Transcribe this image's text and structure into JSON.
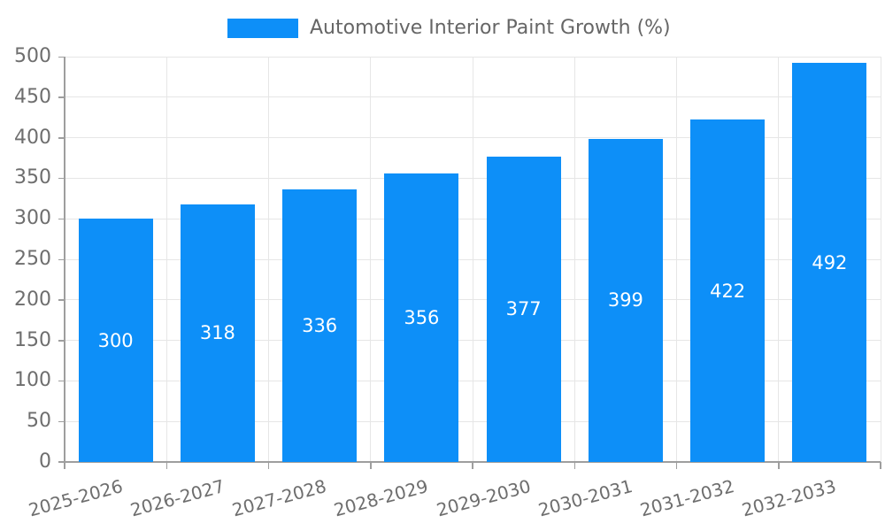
{
  "legend": {
    "label": "Automotive Interior Paint Growth (%)"
  },
  "chart_data": {
    "type": "bar",
    "title": "",
    "legend_label": "Automotive Interior Paint Growth (%)",
    "categories": [
      "2025-2026",
      "2026-2027",
      "2027-2028",
      "2028-2029",
      "2029-2030",
      "2030-2031",
      "2031-2032",
      "2032-2033"
    ],
    "values": [
      300,
      318,
      336,
      356,
      377,
      399,
      422,
      492
    ],
    "xlabel": "",
    "ylabel": "",
    "ylim": [
      0,
      500
    ],
    "ytick_step": 50,
    "grid": true,
    "legend_position": "top-center",
    "value_labels": "inside-center-white",
    "colors": {
      "bar": "#0d8ff8",
      "value_label": "#ffffff",
      "grid": "#e6e6e6",
      "axis": "#9e9e9e",
      "tick_label": "#6e6e6e",
      "legend_text": "#666666",
      "background": "#ffffff"
    }
  }
}
